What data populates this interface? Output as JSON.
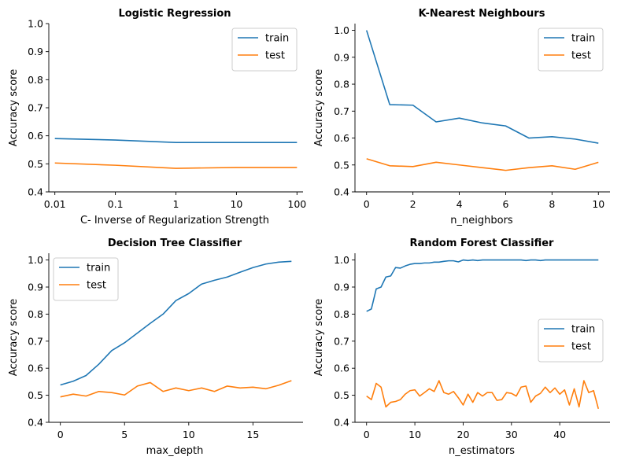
{
  "colors": {
    "train": "#1f77b4",
    "test": "#ff7f0e"
  },
  "chart_data": [
    {
      "type": "line",
      "title": "Logistic Regression",
      "xlabel": "C- Inverse of Regularization Strength",
      "ylabel": "Accuracy score",
      "xscale": "log",
      "xlim": [
        0.00794,
        125.9
      ],
      "ylim": [
        0.4,
        1.0
      ],
      "xticks": [
        0.01,
        0.1,
        1,
        10,
        100
      ],
      "xtick_labels": [
        "0.01",
        "0.1",
        "1",
        "10",
        "100"
      ],
      "yticks": [
        0.4,
        0.5,
        0.6,
        0.7,
        0.8,
        0.9,
        1.0
      ],
      "ytick_labels": [
        "0.4",
        "0.5",
        "0.6",
        "0.7",
        "0.8",
        "0.9",
        "1.0"
      ],
      "legend": "top-right",
      "x": [
        0.01,
        0.1,
        1,
        10,
        100
      ],
      "series": [
        {
          "name": "train",
          "values": [
            0.59,
            0.585,
            0.576,
            0.576,
            0.576
          ]
        },
        {
          "name": "test",
          "values": [
            0.503,
            0.495,
            0.484,
            0.487,
            0.487
          ]
        }
      ]
    },
    {
      "type": "line",
      "title": "K-Nearest Neighbours",
      "xlabel": "n_neighbors",
      "ylabel": "Accuracy score",
      "xlim": [
        -0.5,
        10.5
      ],
      "ylim": [
        0.4,
        1.025
      ],
      "xticks": [
        0,
        2,
        4,
        6,
        8,
        10
      ],
      "xtick_labels": [
        "0",
        "2",
        "4",
        "6",
        "8",
        "10"
      ],
      "yticks": [
        0.4,
        0.5,
        0.6,
        0.7,
        0.8,
        0.9,
        1.0
      ],
      "ytick_labels": [
        "0.4",
        "0.5",
        "0.6",
        "0.7",
        "0.8",
        "0.9",
        "1.0"
      ],
      "legend": "top-right",
      "x": [
        0,
        1,
        2,
        3,
        4,
        5,
        6,
        7,
        8,
        9,
        10
      ],
      "series": [
        {
          "name": "train",
          "values": [
            1.0,
            0.724,
            0.722,
            0.66,
            0.674,
            0.656,
            0.645,
            0.6,
            0.605,
            0.596,
            0.581
          ]
        },
        {
          "name": "test",
          "values": [
            0.523,
            0.497,
            0.494,
            0.51,
            0.5,
            0.49,
            0.48,
            0.49,
            0.497,
            0.484,
            0.51
          ]
        }
      ]
    },
    {
      "type": "line",
      "title": "Decision Tree Classifier",
      "xlabel": "max_depth",
      "ylabel": "Accuracy score",
      "xlim": [
        -0.9,
        18.9
      ],
      "ylim": [
        0.4,
        1.025
      ],
      "xticks": [
        0,
        5,
        10,
        15
      ],
      "xtick_labels": [
        "0",
        "5",
        "10",
        "15"
      ],
      "yticks": [
        0.4,
        0.5,
        0.6,
        0.7,
        0.8,
        0.9,
        1.0
      ],
      "ytick_labels": [
        "0.4",
        "0.5",
        "0.6",
        "0.7",
        "0.8",
        "0.9",
        "1.0"
      ],
      "legend": "top-left",
      "x": [
        0,
        1,
        2,
        3,
        4,
        5,
        6,
        7,
        8,
        9,
        10,
        11,
        12,
        13,
        14,
        15,
        16,
        17,
        18
      ],
      "series": [
        {
          "name": "train",
          "values": [
            0.538,
            0.552,
            0.573,
            0.615,
            0.665,
            0.694,
            0.73,
            0.766,
            0.8,
            0.85,
            0.876,
            0.911,
            0.925,
            0.937,
            0.955,
            0.972,
            0.985,
            0.992,
            0.995
          ]
        },
        {
          "name": "test",
          "values": [
            0.494,
            0.504,
            0.497,
            0.514,
            0.51,
            0.501,
            0.534,
            0.547,
            0.514,
            0.527,
            0.517,
            0.527,
            0.514,
            0.534,
            0.527,
            0.53,
            0.524,
            0.537,
            0.554
          ]
        }
      ]
    },
    {
      "type": "line",
      "title": "Random Forest Classifier",
      "xlabel": "n_estimators",
      "ylabel": "Accuracy score",
      "xlim": [
        -2.4,
        50.4
      ],
      "ylim": [
        0.4,
        1.025
      ],
      "xticks": [
        0,
        10,
        20,
        30,
        40
      ],
      "xtick_labels": [
        "0",
        "10",
        "20",
        "30",
        "40"
      ],
      "yticks": [
        0.4,
        0.5,
        0.6,
        0.7,
        0.8,
        0.9,
        1.0
      ],
      "ytick_labels": [
        "0.4",
        "0.5",
        "0.6",
        "0.7",
        "0.8",
        "0.9",
        "1.0"
      ],
      "legend": "center-right",
      "x": [
        0,
        1,
        2,
        3,
        4,
        5,
        6,
        7,
        8,
        9,
        10,
        11,
        12,
        13,
        14,
        15,
        16,
        17,
        18,
        19,
        20,
        21,
        22,
        23,
        24,
        25,
        26,
        27,
        28,
        29,
        30,
        31,
        32,
        33,
        34,
        35,
        36,
        37,
        38,
        39,
        40,
        41,
        42,
        43,
        44,
        45,
        46,
        47,
        48
      ],
      "series": [
        {
          "name": "train",
          "values": [
            0.81,
            0.819,
            0.893,
            0.9,
            0.937,
            0.941,
            0.972,
            0.97,
            0.978,
            0.984,
            0.987,
            0.987,
            0.989,
            0.989,
            0.992,
            0.992,
            0.995,
            0.997,
            0.997,
            0.993,
            1.0,
            0.998,
            1.0,
            0.998,
            1.0,
            1.0,
            1.0,
            1.0,
            1.0,
            1.0,
            1.0,
            1.0,
            1.0,
            0.998,
            1.0,
            1.0,
            0.998,
            1.0,
            1.0,
            1.0,
            1.0,
            1.0,
            1.0,
            1.0,
            1.0,
            1.0,
            1.0,
            1.0,
            1.0
          ]
        },
        {
          "name": "test",
          "values": [
            0.497,
            0.484,
            0.544,
            0.53,
            0.457,
            0.474,
            0.477,
            0.484,
            0.504,
            0.517,
            0.52,
            0.497,
            0.51,
            0.524,
            0.514,
            0.554,
            0.51,
            0.504,
            0.514,
            0.491,
            0.464,
            0.504,
            0.474,
            0.51,
            0.497,
            0.51,
            0.51,
            0.481,
            0.484,
            0.51,
            0.507,
            0.497,
            0.53,
            0.534,
            0.474,
            0.497,
            0.507,
            0.53,
            0.51,
            0.527,
            0.504,
            0.52,
            0.464,
            0.524,
            0.457,
            0.554,
            0.51,
            0.517,
            0.45
          ]
        }
      ]
    }
  ]
}
